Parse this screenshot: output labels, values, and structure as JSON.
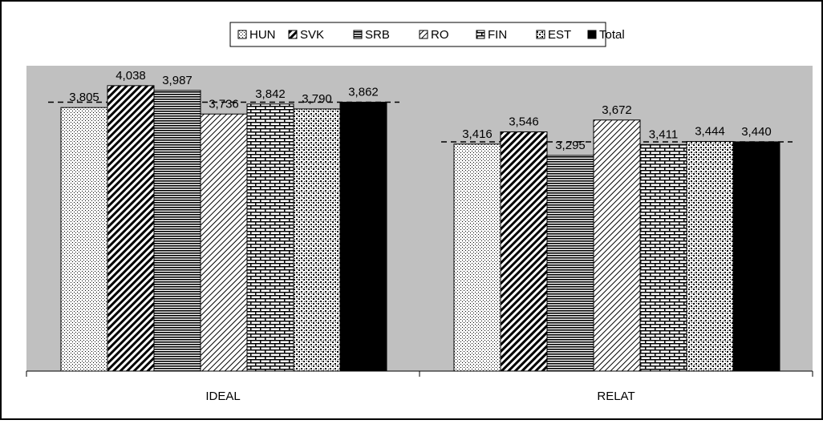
{
  "chart_data": {
    "type": "bar",
    "categories": [
      "IDEAL",
      "RELAT"
    ],
    "series": [
      {
        "name": "HUN",
        "values": [
          3.805,
          3.416
        ],
        "labels": [
          "3,805",
          "3,416"
        ],
        "pattern": "dots"
      },
      {
        "name": "SVK",
        "values": [
          4.038,
          3.546
        ],
        "labels": [
          "4,038",
          "3,546"
        ],
        "pattern": "diagonal"
      },
      {
        "name": "SRB",
        "values": [
          3.987,
          3.295
        ],
        "labels": [
          "3,987",
          "3,295"
        ],
        "pattern": "horizontal"
      },
      {
        "name": "RO",
        "values": [
          3.736,
          3.672
        ],
        "labels": [
          "3,736",
          "3,672"
        ],
        "pattern": "light-diagonal"
      },
      {
        "name": "FIN",
        "values": [
          3.842,
          3.411
        ],
        "labels": [
          "3,842",
          "3,411"
        ],
        "pattern": "brick"
      },
      {
        "name": "EST",
        "values": [
          3.79,
          3.444
        ],
        "labels": [
          "3,790",
          "3,444"
        ],
        "pattern": "confetti"
      },
      {
        "name": "Total",
        "values": [
          3.862,
          3.44
        ],
        "labels": [
          "3,862",
          "3,440"
        ],
        "pattern": "solid"
      }
    ],
    "reference_lines": [
      3.862,
      3.44
    ],
    "ylim": [
      1.0,
      4.25
    ],
    "legend_position": "top",
    "plot_background": "#c0c0c0",
    "grid": false
  }
}
